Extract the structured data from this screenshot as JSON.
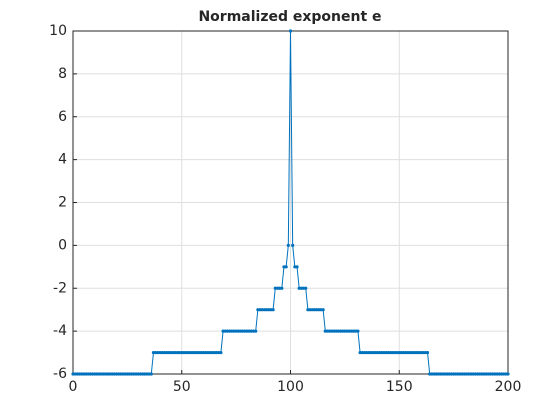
{
  "chart_data": {
    "type": "line",
    "title": "Normalized exponent e",
    "color": "#0072bd",
    "grid": true,
    "xlim": [
      0,
      200
    ],
    "xticks": [
      0,
      50,
      100,
      150,
      200
    ],
    "ylim": [
      -6,
      10
    ],
    "yticks": [
      -6,
      -4,
      -2,
      0,
      2,
      4,
      6,
      8,
      10
    ],
    "x": [
      0,
      1,
      2,
      3,
      4,
      5,
      6,
      7,
      8,
      9,
      10,
      11,
      12,
      13,
      14,
      15,
      16,
      17,
      18,
      19,
      20,
      21,
      22,
      23,
      24,
      25,
      26,
      27,
      28,
      29,
      30,
      31,
      32,
      33,
      34,
      35,
      36,
      37,
      38,
      39,
      40,
      41,
      42,
      43,
      44,
      45,
      46,
      47,
      48,
      49,
      50,
      51,
      52,
      53,
      54,
      55,
      56,
      57,
      58,
      59,
      60,
      61,
      62,
      63,
      64,
      65,
      66,
      67,
      68,
      69,
      70,
      71,
      72,
      73,
      74,
      75,
      76,
      77,
      78,
      79,
      80,
      81,
      82,
      83,
      84,
      85,
      86,
      87,
      88,
      89,
      90,
      91,
      92,
      93,
      94,
      95,
      96,
      97,
      98,
      99,
      100,
      101,
      102,
      103,
      104,
      105,
      106,
      107,
      108,
      109,
      110,
      111,
      112,
      113,
      114,
      115,
      116,
      117,
      118,
      119,
      120,
      121,
      122,
      123,
      124,
      125,
      126,
      127,
      128,
      129,
      130,
      131,
      132,
      133,
      134,
      135,
      136,
      137,
      138,
      139,
      140,
      141,
      142,
      143,
      144,
      145,
      146,
      147,
      148,
      149,
      150,
      151,
      152,
      153,
      154,
      155,
      156,
      157,
      158,
      159,
      160,
      161,
      162,
      163,
      164,
      165,
      166,
      167,
      168,
      169,
      170,
      171,
      172,
      173,
      174,
      175,
      176,
      177,
      178,
      179,
      180,
      181,
      182,
      183,
      184,
      185,
      186,
      187,
      188,
      189,
      190,
      191,
      192,
      193,
      194,
      195,
      196,
      197,
      198,
      199,
      200
    ],
    "values": [
      -6,
      -6,
      -6,
      -6,
      -6,
      -6,
      -6,
      -6,
      -6,
      -6,
      -6,
      -6,
      -6,
      -6,
      -6,
      -6,
      -6,
      -6,
      -6,
      -6,
      -6,
      -6,
      -6,
      -6,
      -6,
      -6,
      -6,
      -6,
      -6,
      -6,
      -6,
      -6,
      -6,
      -6,
      -6,
      -6,
      -6,
      -5,
      -5,
      -5,
      -5,
      -5,
      -5,
      -5,
      -5,
      -5,
      -5,
      -5,
      -5,
      -5,
      -5,
      -5,
      -5,
      -5,
      -5,
      -5,
      -5,
      -5,
      -5,
      -5,
      -5,
      -5,
      -5,
      -5,
      -5,
      -5,
      -5,
      -5,
      -5,
      -4,
      -4,
      -4,
      -4,
      -4,
      -4,
      -4,
      -4,
      -4,
      -4,
      -4,
      -4,
      -4,
      -4,
      -4,
      -4,
      -3,
      -3,
      -3,
      -3,
      -3,
      -3,
      -3,
      -3,
      -2,
      -2,
      -2,
      -2,
      -1,
      -1,
      0,
      10,
      0,
      -1,
      -1,
      -2,
      -2,
      -2,
      -2,
      -3,
      -3,
      -3,
      -3,
      -3,
      -3,
      -3,
      -3,
      -4,
      -4,
      -4,
      -4,
      -4,
      -4,
      -4,
      -4,
      -4,
      -4,
      -4,
      -4,
      -4,
      -4,
      -4,
      -4,
      -5,
      -5,
      -5,
      -5,
      -5,
      -5,
      -5,
      -5,
      -5,
      -5,
      -5,
      -5,
      -5,
      -5,
      -5,
      -5,
      -5,
      -5,
      -5,
      -5,
      -5,
      -5,
      -5,
      -5,
      -5,
      -5,
      -5,
      -5,
      -5,
      -5,
      -5,
      -5,
      -6,
      -6,
      -6,
      -6,
      -6,
      -6,
      -6,
      -6,
      -6,
      -6,
      -6,
      -6,
      -6,
      -6,
      -6,
      -6,
      -6,
      -6,
      -6,
      -6,
      -6,
      -6,
      -6,
      -6,
      -6,
      -6,
      -6,
      -6,
      -6,
      -6,
      -6,
      -6,
      -6,
      -6,
      -6,
      -6,
      -6
    ]
  }
}
